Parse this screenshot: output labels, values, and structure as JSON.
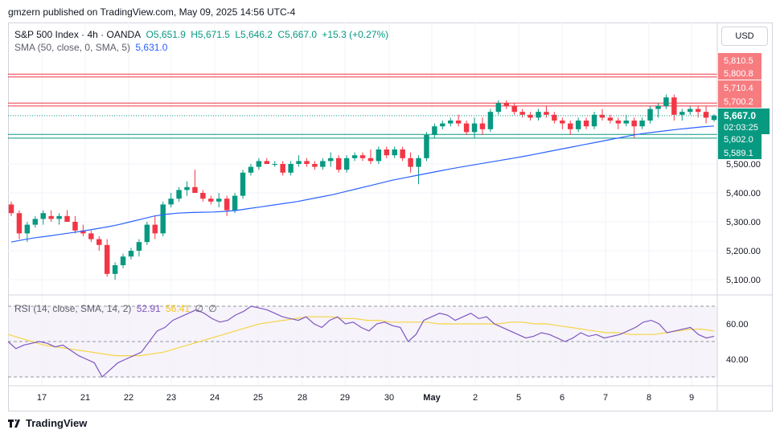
{
  "header": {
    "publisher_line": "gmzern published on TradingView.com, May 09, 2025 14:56 UTC-4"
  },
  "legend": {
    "symbol": "S&P 500 Index · 4h · OANDA",
    "open": "O5,651.9",
    "high": "H5,671.5",
    "low": "L5,646.2",
    "close": "C5,667.0",
    "change": "+15.3 (+0.27%)",
    "sma_label": "SMA (50, close, 0, SMA, 5)",
    "sma_value": "5,631.0",
    "rsi_label": "RSI (14, close, SMA, 14, 2)",
    "rsi_value": "52.91",
    "rsi_ma_value": "56.41",
    "rsi_extra1": "∅",
    "rsi_extra2": "∅"
  },
  "currency": "USD",
  "footer": {
    "brand": "TradingView"
  },
  "colors": {
    "up": "#089981",
    "down": "#f23645",
    "sma": "#2962ff",
    "rsi": "#7e57c2",
    "rsi_ma": "#f5d547",
    "resistance": "#f23645",
    "support": "#089981"
  },
  "chart_data": {
    "type": "candlestick",
    "interval": "4h",
    "y_axis_ticks": [
      "5,100.00",
      "5,200.00",
      "5,300.00",
      "5,400.00",
      "5,500.00"
    ],
    "x_axis_labels": [
      "17",
      "21",
      "22",
      "23",
      "24",
      "25",
      "28",
      "29",
      "30",
      "May",
      "2",
      "5",
      "6",
      "7",
      "8",
      "9"
    ],
    "resistance_lines": [
      5810.5,
      5800.8,
      5710.4,
      5700.2
    ],
    "support_lines": [
      5602.0,
      5589.1
    ],
    "current_price": {
      "label": "5,667.0",
      "countdown": "02:03:25",
      "value": 5667.0
    },
    "level_labels": [
      {
        "text": "5,810.5",
        "value": 5810.5,
        "kind": "down"
      },
      {
        "text": "5,800.8",
        "value": 5800.8,
        "kind": "down"
      },
      {
        "text": "5,710.4",
        "value": 5710.4,
        "kind": "down"
      },
      {
        "text": "5,700.2",
        "value": 5700.2,
        "kind": "down"
      },
      {
        "text": "5,602.0",
        "value": 5602.0,
        "kind": "up"
      },
      {
        "text": "5,589.1",
        "value": 5589.1,
        "kind": "up"
      }
    ],
    "candles": [
      [
        5360,
        5370,
        5320,
        5330
      ],
      [
        5330,
        5340,
        5240,
        5260
      ],
      [
        5260,
        5300,
        5230,
        5290
      ],
      [
        5290,
        5320,
        5280,
        5310
      ],
      [
        5310,
        5340,
        5290,
        5330
      ],
      [
        5320,
        5340,
        5300,
        5310
      ],
      [
        5310,
        5330,
        5290,
        5320
      ],
      [
        5320,
        5340,
        5300,
        5300
      ],
      [
        5300,
        5320,
        5260,
        5270
      ],
      [
        5270,
        5290,
        5250,
        5260
      ],
      [
        5260,
        5270,
        5230,
        5240
      ],
      [
        5240,
        5250,
        5200,
        5220
      ],
      [
        5220,
        5240,
        5110,
        5120
      ],
      [
        5120,
        5160,
        5100,
        5150
      ],
      [
        5150,
        5190,
        5140,
        5180
      ],
      [
        5180,
        5210,
        5170,
        5200
      ],
      [
        5200,
        5240,
        5180,
        5230
      ],
      [
        5230,
        5300,
        5220,
        5290
      ],
      [
        5290,
        5320,
        5240,
        5260
      ],
      [
        5260,
        5370,
        5250,
        5360
      ],
      [
        5360,
        5400,
        5350,
        5380
      ],
      [
        5380,
        5420,
        5370,
        5410
      ],
      [
        5410,
        5440,
        5390,
        5420
      ],
      [
        5420,
        5480,
        5400,
        5400
      ],
      [
        5400,
        5410,
        5370,
        5380
      ],
      [
        5380,
        5390,
        5360,
        5370
      ],
      [
        5370,
        5400,
        5350,
        5380
      ],
      [
        5380,
        5390,
        5320,
        5340
      ],
      [
        5340,
        5400,
        5330,
        5390
      ],
      [
        5390,
        5480,
        5380,
        5470
      ],
      [
        5470,
        5500,
        5460,
        5490
      ],
      [
        5490,
        5520,
        5480,
        5510
      ],
      [
        5510,
        5520,
        5500,
        5500
      ],
      [
        5500,
        5510,
        5490,
        5500
      ],
      [
        5500,
        5510,
        5460,
        5470
      ],
      [
        5470,
        5510,
        5460,
        5500
      ],
      [
        5500,
        5530,
        5490,
        5510
      ],
      [
        5510,
        5520,
        5490,
        5500
      ],
      [
        5500,
        5510,
        5480,
        5490
      ],
      [
        5490,
        5520,
        5480,
        5510
      ],
      [
        5510,
        5540,
        5490,
        5520
      ],
      [
        5520,
        5530,
        5470,
        5480
      ],
      [
        5480,
        5530,
        5470,
        5520
      ],
      [
        5520,
        5540,
        5510,
        5530
      ],
      [
        5530,
        5540,
        5510,
        5520
      ],
      [
        5520,
        5550,
        5500,
        5510
      ],
      [
        5510,
        5560,
        5500,
        5550
      ],
      [
        5550,
        5560,
        5520,
        5530
      ],
      [
        5530,
        5560,
        5520,
        5550
      ],
      [
        5550,
        5560,
        5510,
        5520
      ],
      [
        5520,
        5540,
        5470,
        5490
      ],
      [
        5490,
        5530,
        5430,
        5520
      ],
      [
        5520,
        5610,
        5510,
        5600
      ],
      [
        5600,
        5640,
        5590,
        5630
      ],
      [
        5630,
        5650,
        5620,
        5640
      ],
      [
        5640,
        5660,
        5630,
        5650
      ],
      [
        5650,
        5670,
        5630,
        5640
      ],
      [
        5640,
        5650,
        5600,
        5610
      ],
      [
        5610,
        5660,
        5590,
        5640
      ],
      [
        5640,
        5660,
        5600,
        5620
      ],
      [
        5620,
        5690,
        5610,
        5680
      ],
      [
        5680,
        5720,
        5670,
        5710
      ],
      [
        5710,
        5720,
        5690,
        5700
      ],
      [
        5700,
        5710,
        5670,
        5680
      ],
      [
        5680,
        5690,
        5660,
        5670
      ],
      [
        5670,
        5680,
        5650,
        5660
      ],
      [
        5660,
        5690,
        5650,
        5680
      ],
      [
        5680,
        5700,
        5660,
        5670
      ],
      [
        5670,
        5680,
        5640,
        5650
      ],
      [
        5650,
        5660,
        5620,
        5640
      ],
      [
        5640,
        5650,
        5600,
        5620
      ],
      [
        5620,
        5660,
        5610,
        5650
      ],
      [
        5650,
        5660,
        5620,
        5630
      ],
      [
        5630,
        5680,
        5620,
        5670
      ],
      [
        5670,
        5690,
        5650,
        5660
      ],
      [
        5660,
        5670,
        5640,
        5650
      ],
      [
        5650,
        5660,
        5620,
        5640
      ],
      [
        5640,
        5670,
        5630,
        5650
      ],
      [
        5650,
        5660,
        5590,
        5630
      ],
      [
        5630,
        5660,
        5620,
        5650
      ],
      [
        5650,
        5700,
        5640,
        5690
      ],
      [
        5690,
        5710,
        5660,
        5700
      ],
      [
        5700,
        5740,
        5690,
        5730
      ],
      [
        5730,
        5740,
        5650,
        5670
      ],
      [
        5670,
        5690,
        5650,
        5680
      ],
      [
        5680,
        5700,
        5670,
        5690
      ],
      [
        5690,
        5700,
        5660,
        5680
      ],
      [
        5680,
        5700,
        5640,
        5660
      ],
      [
        5652,
        5672,
        5646,
        5667
      ]
    ],
    "sma_values": [
      5230,
      5238,
      5245,
      5250,
      5256,
      5262,
      5268,
      5275,
      5282,
      5290,
      5300,
      5310,
      5320,
      5326,
      5330,
      5332,
      5333,
      5334,
      5336,
      5340,
      5346,
      5352,
      5358,
      5364,
      5370,
      5378,
      5386,
      5394,
      5404,
      5414,
      5424,
      5434,
      5444,
      5452,
      5460,
      5468,
      5476,
      5484,
      5491,
      5498,
      5505,
      5512,
      5519,
      5526,
      5534,
      5542,
      5550,
      5558,
      5566,
      5574,
      5582,
      5590,
      5598,
      5605,
      5610,
      5615,
      5620,
      5624,
      5628,
      5631
    ],
    "rsi": {
      "y_axis_ticks": [
        "60.00",
        "40.00"
      ],
      "upper_band": 70,
      "lower_band": 30,
      "middle": 50,
      "values": [
        50,
        46,
        48,
        49,
        50,
        49,
        47,
        48,
        45,
        42,
        40,
        38,
        30,
        34,
        38,
        40,
        42,
        44,
        50,
        56,
        58,
        62,
        64,
        66,
        68,
        66,
        63,
        61,
        62,
        65,
        67,
        70,
        69,
        68,
        66,
        64,
        63,
        62,
        64,
        60,
        58,
        62,
        64,
        60,
        61,
        58,
        56,
        60,
        61,
        59,
        58,
        50,
        54,
        62,
        64,
        66,
        65,
        62,
        64,
        66,
        63,
        64,
        60,
        58,
        56,
        54,
        52,
        53,
        55,
        54,
        52,
        50,
        52,
        55,
        53,
        54,
        52,
        53,
        54,
        56,
        58,
        61,
        62,
        60,
        55,
        56,
        57,
        58,
        54,
        52,
        53
      ],
      "ma_values": [
        54,
        52,
        50,
        48,
        47,
        46,
        45,
        44,
        43,
        42,
        42,
        42,
        43,
        44,
        46,
        48,
        50,
        52,
        54,
        56,
        58,
        60,
        61,
        62,
        63,
        64,
        64,
        64,
        63,
        63,
        62,
        62,
        61,
        61,
        61,
        61,
        60,
        60,
        60,
        60,
        60,
        60,
        61,
        61,
        60,
        60,
        59,
        58,
        57,
        56,
        55,
        55,
        54,
        54,
        54,
        55,
        56,
        57,
        57,
        56
      ]
    }
  }
}
